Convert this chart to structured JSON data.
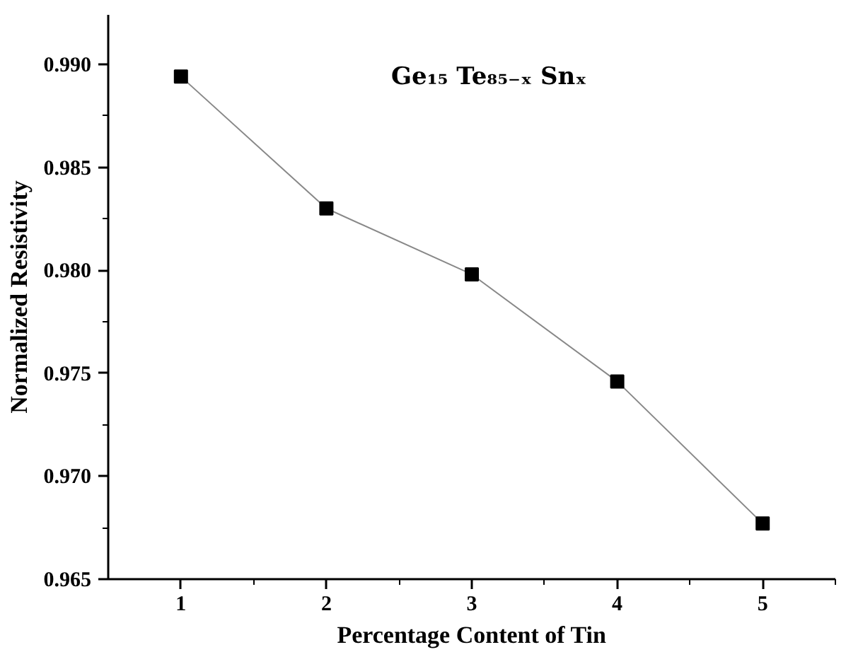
{
  "chart_data": {
    "type": "line",
    "xlabel": "Percentage Content of Tin",
    "ylabel": "Normalized Resistivity",
    "annotations": [
      "Ge₁₅ Te₈₅₋ₓ Snₓ"
    ],
    "x": [
      1,
      2,
      3,
      4,
      5
    ],
    "series": [
      {
        "color": "#000000",
        "values": [
          0.9894,
          0.983,
          0.9798,
          0.9746,
          0.9677
        ]
      }
    ],
    "marker": "square",
    "line_style": "solid",
    "xlim": [
      0.5,
      5.5
    ],
    "xticks": [
      1,
      {
        "value": 1.5,
        "label": null
      },
      2,
      {
        "value": 2.5,
        "label": null
      },
      3,
      {
        "value": 3.5,
        "label": null
      },
      4,
      {
        "value": 4.5,
        "label": null
      },
      5,
      {
        "value": 5.5,
        "label": null
      }
    ],
    "ylim": [
      0.965,
      0.9924
    ],
    "yticks": [
      {
        "value": 0.965,
        "label": "0.965"
      },
      {
        "value": 0.9675,
        "label": null
      },
      {
        "value": 0.97,
        "label": "0.970"
      },
      {
        "value": 0.9725,
        "label": null
      },
      {
        "value": 0.975,
        "label": "0.975"
      },
      {
        "value": 0.9775,
        "label": null
      },
      {
        "value": 0.98,
        "label": "0.980"
      },
      {
        "value": 0.9825,
        "label": null
      },
      {
        "value": 0.985,
        "label": "0.985"
      },
      {
        "value": 0.9875,
        "label": null
      },
      {
        "value": 0.99,
        "label": "0.990"
      }
    ]
  }
}
